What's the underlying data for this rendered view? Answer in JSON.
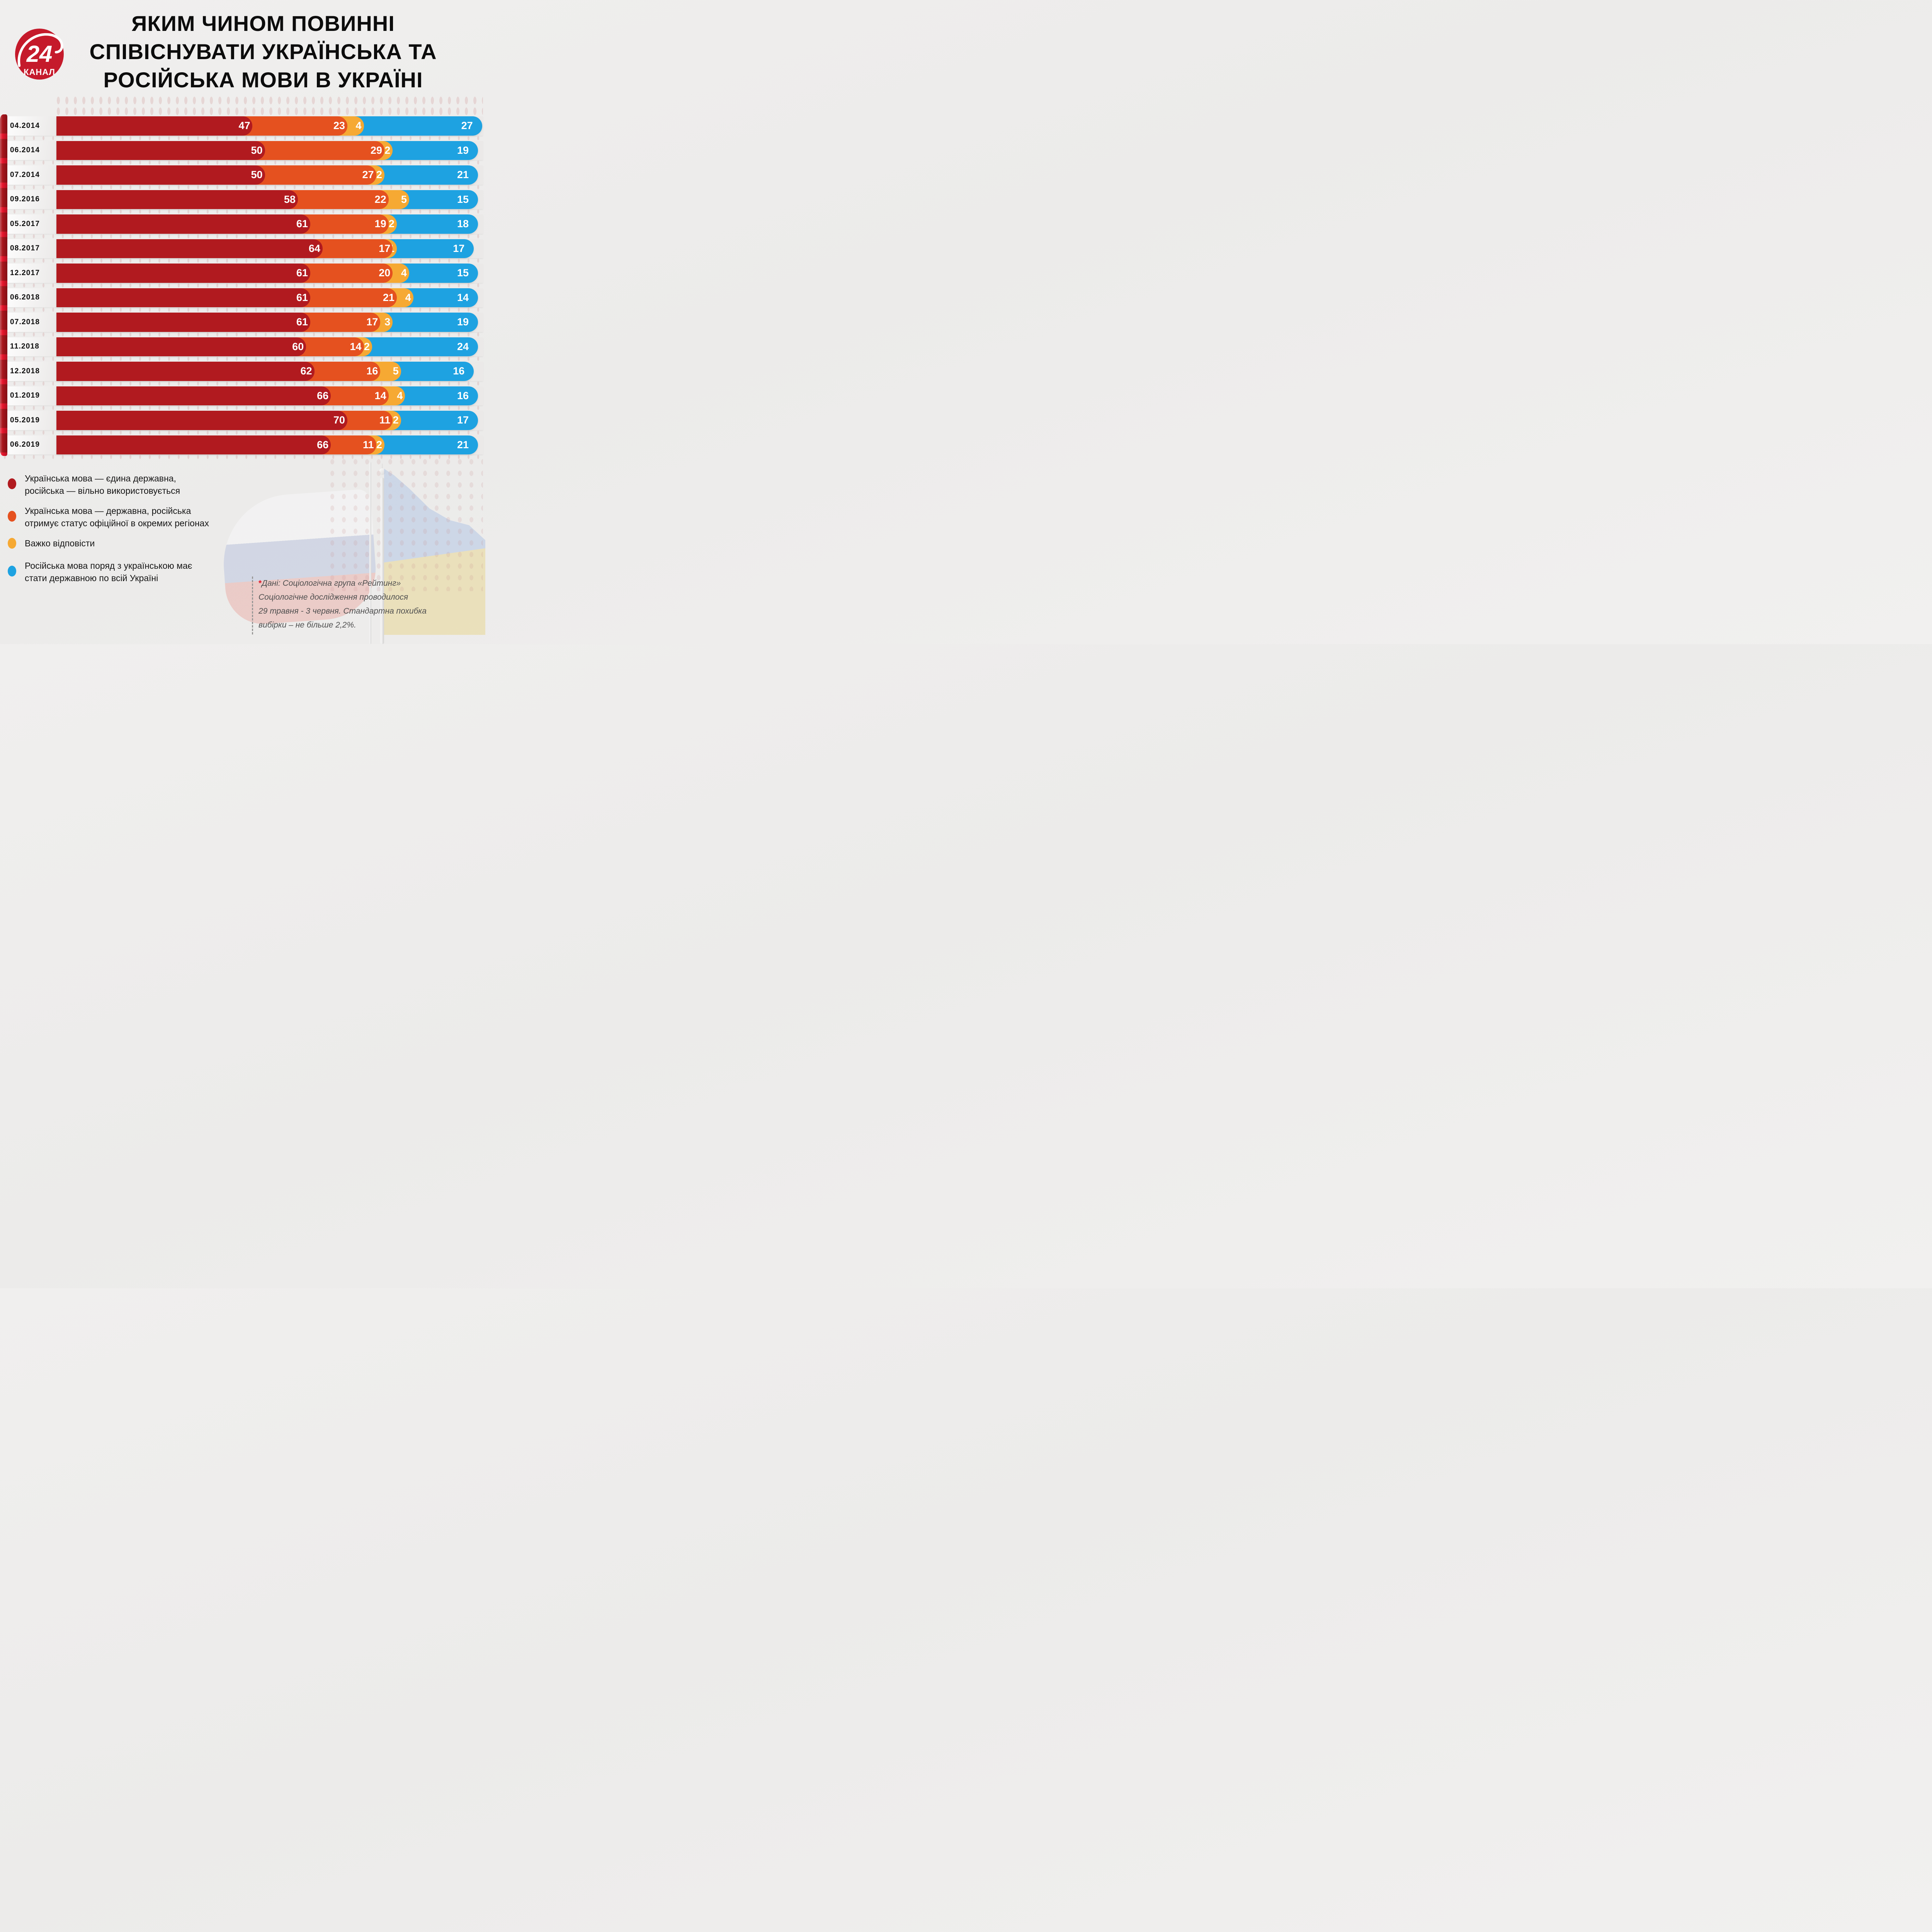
{
  "logo": {
    "number": "24",
    "channel": "КАНАЛ"
  },
  "title": {
    "lines": [
      "ЯКИМ ЧИНОМ ПОВИННІ",
      "СПІВІСНУВАТИ УКРАЇНСЬКА ТА",
      "РОСІЙСЬКА МОВИ В УКРАЇНІ"
    ]
  },
  "chart_data": {
    "type": "bar",
    "stacked": true,
    "orientation": "horizontal",
    "unit": "%",
    "xlim": [
      0,
      100
    ],
    "grid": false,
    "legend_position": "bottom-left",
    "categories": [
      "04.2014",
      "06.2014",
      "07.2014",
      "09.2016",
      "05.2017",
      "08.2017",
      "12.2017",
      "06.2018",
      "07.2018",
      "11.2018",
      "12.2018",
      "01.2019",
      "05.2019",
      "06.2019"
    ],
    "series": [
      {
        "name": "Українська мова — єдина державна, російська — вільно використовується",
        "color": "#b11a1f",
        "values": [
          47,
          50,
          50,
          58,
          61,
          64,
          61,
          61,
          61,
          60,
          62,
          66,
          70,
          66
        ]
      },
      {
        "name": "Українська мова — державна, російська отримує статус офіційної в окремих регіонах",
        "color": "#e5511f",
        "values": [
          23,
          29,
          27,
          22,
          19,
          17,
          20,
          21,
          17,
          14,
          16,
          14,
          11,
          11
        ]
      },
      {
        "name": "Важко відповісти",
        "color": "#f6a933",
        "values": [
          4,
          2,
          2,
          5,
          2,
          1,
          4,
          4,
          3,
          2,
          5,
          4,
          2,
          2
        ]
      },
      {
        "name": "Російська мова поряд з українською має стати державною по всій Україні",
        "color": "#1ea2e1",
        "values": [
          27,
          19,
          21,
          15,
          18,
          17,
          15,
          14,
          19,
          24,
          16,
          16,
          17,
          21
        ]
      }
    ]
  },
  "legend": {
    "items": [
      {
        "color": "#b11a1f",
        "lines": [
          "Українська мова — єдина державна,",
          "російська — вільно використовується"
        ]
      },
      {
        "color": "#e5511f",
        "lines": [
          "Українська мова — державна, російська",
          "отримує статус офіційної в окремих регіонах"
        ]
      },
      {
        "color": "#f6a933",
        "lines": [
          "Важко відповісти"
        ]
      },
      {
        "color": "#1ea2e1",
        "lines": [
          "Російська мова поряд з українською має",
          "стати державною по всій Україні"
        ]
      }
    ]
  },
  "footnote": {
    "marker": "*",
    "lines": [
      "Дані:  Соціологічна група «Рейтинг»",
      "Соціологічне дослідження проводилося",
      "29 травня - 3 червня. Стандартна похибка",
      "вибірки – не більше 2,2%."
    ]
  },
  "colors": {
    "page_bg": "#ecebea",
    "ribbon_dark": "#a8151c",
    "ribbon_bright": "#e6152b",
    "title_text": "#0c0c0c",
    "bar_label": "#ffffff",
    "footnote_text": "#4f4f4f",
    "logo_red": "#c51a2b"
  }
}
